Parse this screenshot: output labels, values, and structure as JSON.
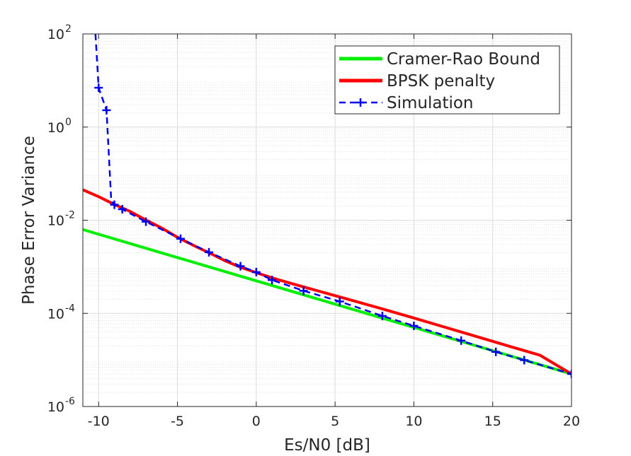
{
  "chart_data": {
    "type": "line",
    "title": "",
    "xlabel": "Es/N0 [dB]",
    "ylabel": "Phase Error Variance",
    "xlim": [
      -11,
      20
    ],
    "ylim": [
      1e-06,
      100
    ],
    "yscale": "log",
    "grid": true,
    "minor_grid": true,
    "legend_position": "top-right",
    "x_ticks": [
      {
        "value": -10,
        "label": "-10"
      },
      {
        "value": -5,
        "label": "-5"
      },
      {
        "value": 0,
        "label": "0"
      },
      {
        "value": 5,
        "label": "5"
      },
      {
        "value": 10,
        "label": "10"
      },
      {
        "value": 15,
        "label": "15"
      },
      {
        "value": 20,
        "label": "20"
      }
    ],
    "y_ticks": [
      {
        "value": 1e-06,
        "base": "10",
        "exp": "-6"
      },
      {
        "value": 0.0001,
        "base": "10",
        "exp": "-4"
      },
      {
        "value": 0.01,
        "base": "10",
        "exp": "-2"
      },
      {
        "value": 1,
        "base": "10",
        "exp": "0"
      },
      {
        "value": 100,
        "base": "10",
        "exp": "2"
      }
    ],
    "series": [
      {
        "name": "Cramer-Rao Bound",
        "color": "#00ee00",
        "style": "solid",
        "marker": "none",
        "x": [
          -11,
          -5,
          0,
          5,
          10,
          15,
          20
        ],
        "y": [
          0.0063,
          0.00158,
          0.0005,
          0.000158,
          5e-05,
          1.58e-05,
          5e-06
        ]
      },
      {
        "name": "BPSK penalty",
        "color": "#ff0000",
        "style": "solid",
        "marker": "none",
        "x": [
          -11,
          -10,
          -9,
          -8,
          -7,
          -6,
          -5,
          -4,
          -3,
          -2,
          -1,
          0,
          1,
          2,
          3,
          4,
          5,
          6,
          8,
          10,
          12,
          14,
          16,
          18,
          20
        ],
        "y": [
          0.045,
          0.032,
          0.0218,
          0.0154,
          0.0101,
          0.0068,
          0.0043,
          0.0029,
          0.002,
          0.00136,
          0.00098,
          0.00075,
          0.00058,
          0.00046,
          0.00037,
          0.000298,
          0.00024,
          0.000193,
          0.000125,
          7.95e-05,
          5.02e-05,
          3.16e-05,
          1.99e-05,
          1.26e-05,
          5e-06
        ]
      },
      {
        "name": "Simulation",
        "color": "#0000ee",
        "style": "dashed",
        "marker": "plus",
        "x": [
          -10.2,
          -10.0,
          -9.5,
          -9.2,
          -9.0,
          -8.5,
          -7.0,
          -4.8,
          -3.0,
          -1.0,
          0.0,
          1.0,
          3.0,
          5.3,
          8.0,
          10.0,
          13.0,
          15.2,
          17.0,
          20.0
        ],
        "y": [
          100,
          7,
          2.3,
          0.026,
          0.0215,
          0.0172,
          0.0093,
          0.004,
          0.00205,
          0.00103,
          0.00077,
          0.00052,
          0.000305,
          0.00018,
          8.8e-05,
          5.4e-05,
          2.6e-05,
          1.49e-05,
          9.9e-06,
          5e-06
        ],
        "marker_x": [
          -10.0,
          -9.5,
          -9.0,
          -8.5,
          -7.0,
          -4.8,
          -3.0,
          -1.0,
          0.0,
          1.0,
          3.0,
          5.3,
          8.0,
          10.0,
          13.0,
          15.2,
          17.0,
          20.0
        ]
      }
    ]
  }
}
